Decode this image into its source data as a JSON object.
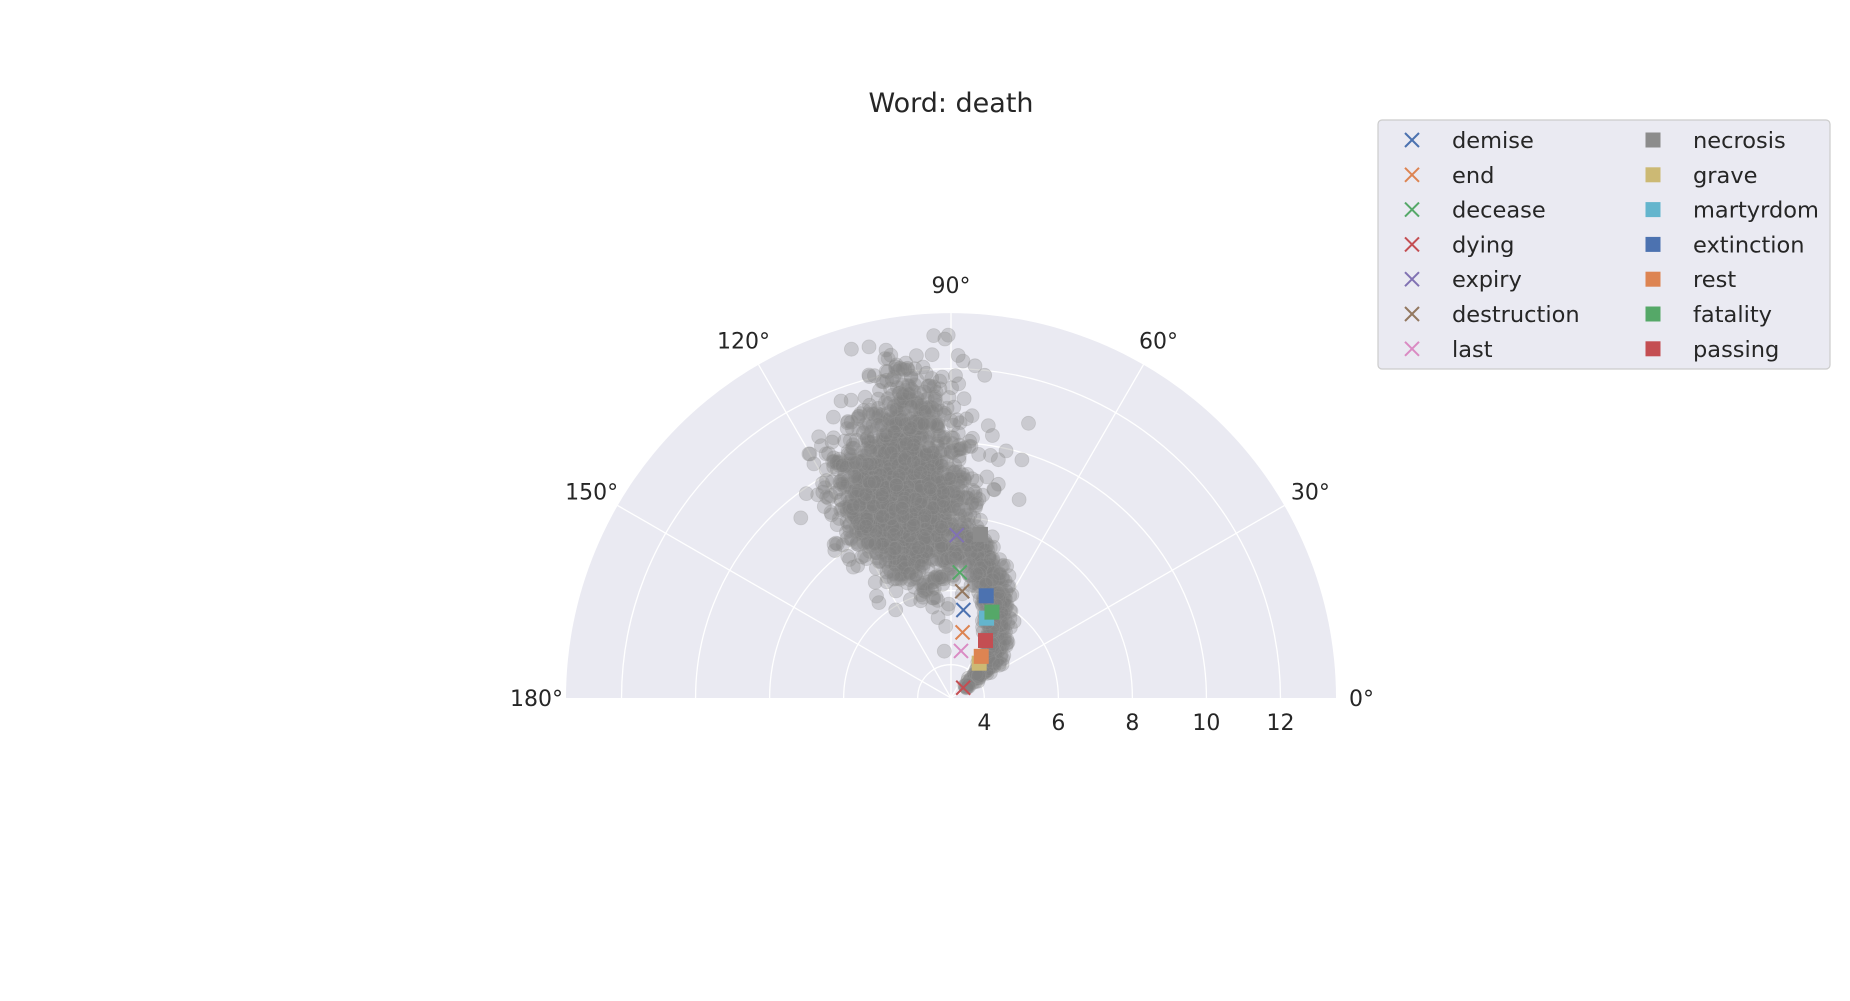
{
  "chart_data": {
    "type": "scatter",
    "projection": "polar-half",
    "title": "Word: death",
    "theta_range_deg": [
      0,
      180
    ],
    "r_range": [
      3.1,
      13.5
    ],
    "theta_ticks": [
      "0°",
      "30°",
      "60°",
      "90°",
      "120°",
      "150°",
      "180°"
    ],
    "r_ticks": [
      "4",
      "6",
      "8",
      "10",
      "12"
    ],
    "r_tick_values": [
      4,
      6,
      8,
      10,
      12
    ],
    "grid": true,
    "legend_position": "upper-right-outside",
    "background_cloud": {
      "color": "#808080",
      "opacity": 0.3,
      "marker": "circle",
      "description_count": 2600
    },
    "series": [
      {
        "name": "demise",
        "marker": "x",
        "color": "#4c72b0",
        "theta_deg": 82,
        "r": 5.5
      },
      {
        "name": "end",
        "marker": "x",
        "color": "#dd8452",
        "theta_deg": 80,
        "r": 4.9
      },
      {
        "name": "decease",
        "marker": "x",
        "color": "#55a868",
        "theta_deg": 86,
        "r": 6.5
      },
      {
        "name": "dying",
        "marker": "x",
        "color": "#c44e52",
        "theta_deg": 40,
        "r": 3.53
      },
      {
        "name": "expiry",
        "marker": "x",
        "color": "#8172b3",
        "theta_deg": 88,
        "r": 7.5
      },
      {
        "name": "destruction",
        "marker": "x",
        "color": "#937860",
        "theta_deg": 84,
        "r": 6.0
      },
      {
        "name": "last",
        "marker": "x",
        "color": "#da8bc3",
        "theta_deg": 78,
        "r": 4.4
      },
      {
        "name": "necrosis",
        "marker": "s",
        "color": "#8c8c8c",
        "theta_deg": 79.8,
        "r": 7.59
      },
      {
        "name": "grave",
        "marker": "s",
        "color": "#ccb974",
        "theta_deg": 51,
        "r": 4.31
      },
      {
        "name": "martyrdom",
        "marker": "s",
        "color": "#64b5cd",
        "theta_deg": 66,
        "r": 5.46
      },
      {
        "name": "extinction",
        "marker": "s",
        "color": "#4c72b0",
        "theta_deg": 71,
        "r": 6.02
      },
      {
        "name": "rest",
        "marker": "s",
        "color": "#dd8452",
        "theta_deg": 54,
        "r": 4.49
      },
      {
        "name": "fatality",
        "marker": "s",
        "color": "#55a868",
        "theta_deg": 64.5,
        "r": 5.67
      },
      {
        "name": "passing",
        "marker": "s",
        "color": "#c44e52",
        "theta_deg": 59,
        "r": 4.91
      }
    ]
  }
}
